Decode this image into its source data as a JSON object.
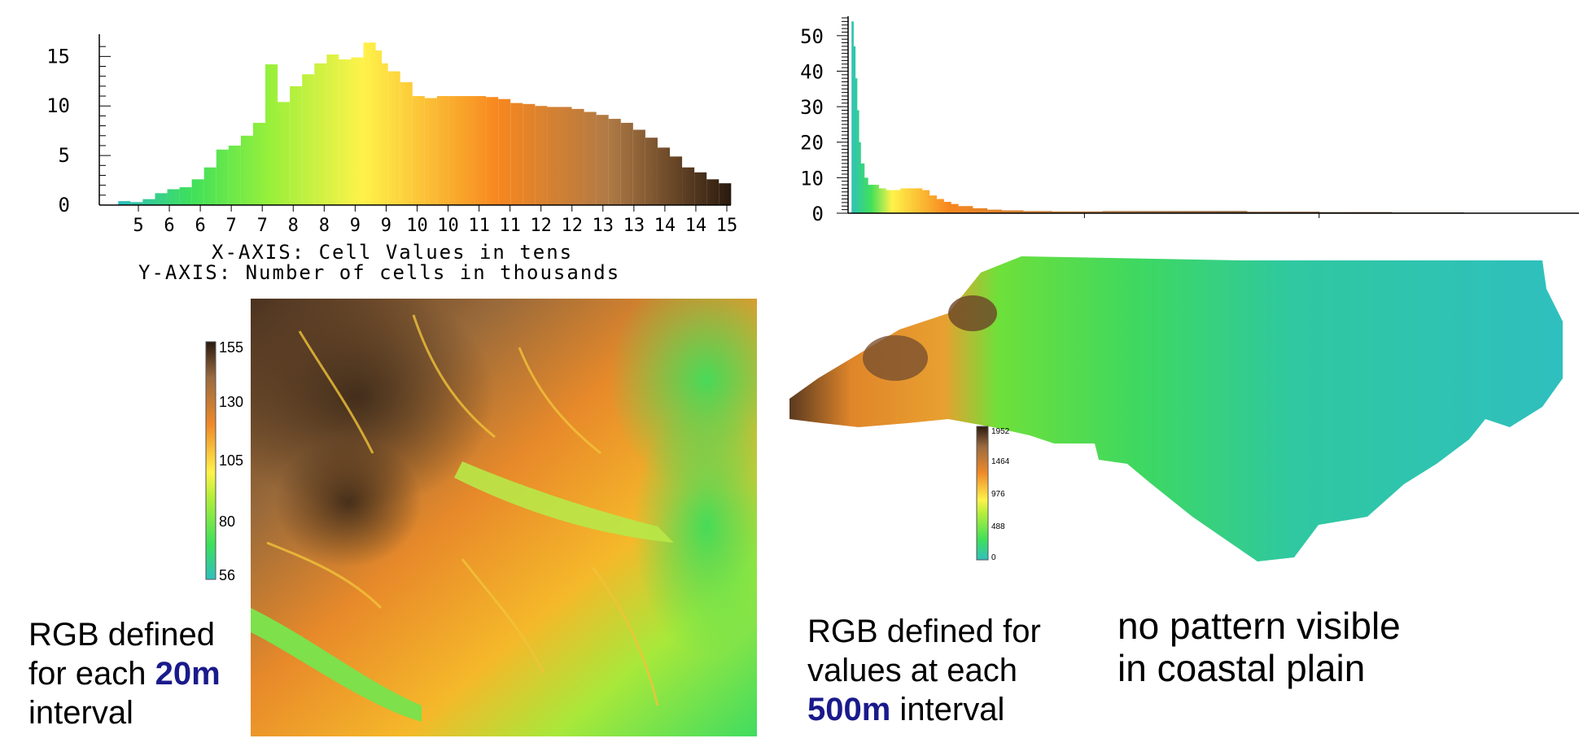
{
  "colors": {
    "ramp": [
      "#2fbfbf",
      "#3ee05a",
      "#9af03a",
      "#fff24a",
      "#f7871f",
      "#b07a45",
      "#2a1a0e"
    ],
    "highlight": "#1a1a8c"
  },
  "chart_data": [
    {
      "type": "bar",
      "title": "",
      "xlabel": "X-AXIS: Cell Values in tens",
      "ylabel": "Y-AXIS: Number of cells in thousands",
      "x_tick_labels": [
        "5",
        "6",
        "6",
        "7",
        "7",
        "8",
        "8",
        "9",
        "9",
        "10",
        "10",
        "11",
        "11",
        "12",
        "12",
        "13",
        "13",
        "14",
        "14",
        "15"
      ],
      "y_ticks": [
        "0",
        "5",
        "10",
        "15"
      ],
      "xlim": [
        55,
        155
      ],
      "ylim": [
        0,
        17
      ],
      "x": [
        56,
        58,
        60,
        62,
        64,
        66,
        68,
        70,
        72,
        74,
        76,
        78,
        80,
        81,
        82,
        84,
        86,
        88,
        90,
        92,
        94,
        96,
        97,
        98,
        100,
        102,
        104,
        106,
        108,
        110,
        112,
        114,
        116,
        118,
        120,
        122,
        124,
        126,
        128,
        130,
        132,
        134,
        136,
        138,
        140,
        142,
        144,
        146,
        148,
        150,
        152,
        154
      ],
      "values": [
        0.4,
        0.3,
        0.6,
        1.2,
        1.6,
        1.8,
        2.6,
        3.8,
        5.6,
        6.0,
        7.0,
        8.3,
        14.2,
        10.0,
        10.4,
        12.0,
        13.2,
        14.3,
        15.2,
        14.7,
        14.9,
        16.4,
        15.6,
        14.3,
        13.5,
        12.4,
        11.0,
        10.8,
        11.0,
        11.0,
        11.0,
        11.0,
        10.9,
        10.7,
        10.3,
        10.2,
        10.0,
        9.9,
        9.9,
        9.7,
        9.4,
        9.1,
        8.7,
        8.3,
        7.6,
        6.8,
        5.8,
        4.9,
        3.8,
        3.3,
        2.6,
        2.2
      ]
    },
    {
      "type": "bar",
      "title": "",
      "xlabel": "",
      "ylabel": "",
      "y_ticks": [
        "0",
        "10",
        "20",
        "30",
        "40",
        "50"
      ],
      "xlim": [
        0,
        1952
      ],
      "ylim": [
        0,
        55
      ],
      "x": [
        5,
        10,
        15,
        20,
        25,
        30,
        40,
        50,
        60,
        80,
        100,
        120,
        140,
        160,
        180,
        200,
        220,
        240,
        260,
        280,
        300,
        340,
        380,
        420,
        480,
        560,
        700,
        900,
        1100,
        1300,
        1500,
        1700,
        1900
      ],
      "values": [
        54,
        47,
        38,
        29,
        20,
        14,
        10,
        8,
        8,
        7,
        6.5,
        6.5,
        7,
        7,
        7,
        6.5,
        5,
        4,
        3.2,
        2.6,
        2.0,
        1.4,
        1.0,
        0.8,
        0.6,
        0.5,
        0.6,
        0.6,
        0.4,
        0.3,
        0.2,
        0.1,
        0.05
      ]
    }
  ],
  "legend_left": {
    "labels": [
      "155",
      "130",
      "105",
      "80",
      "56"
    ]
  },
  "legend_right": {
    "labels": [
      "1952",
      "1464",
      "976",
      "488",
      "0"
    ]
  },
  "captions": {
    "left": {
      "line1": "RGB defined",
      "line2_pre": "for each ",
      "line2_hl": "20m",
      "line3": "interval"
    },
    "middle": {
      "line1": "RGB defined for",
      "line2": "values at each",
      "line3_hl": "500m",
      "line3_post": " interval"
    },
    "right": {
      "line1": "no pattern visible",
      "line2": "in coastal plain"
    }
  }
}
